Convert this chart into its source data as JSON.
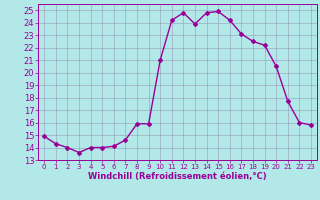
{
  "x": [
    0,
    1,
    2,
    3,
    4,
    5,
    6,
    7,
    8,
    9,
    10,
    11,
    12,
    13,
    14,
    15,
    16,
    17,
    18,
    19,
    20,
    21,
    22,
    23
  ],
  "y": [
    14.9,
    14.3,
    14.0,
    13.6,
    14.0,
    14.0,
    14.1,
    14.6,
    15.9,
    15.9,
    21.0,
    24.2,
    24.8,
    23.9,
    24.8,
    24.9,
    24.2,
    23.1,
    22.5,
    22.2,
    20.5,
    17.7,
    16.0,
    15.8
  ],
  "line_color": "#990099",
  "marker": "D",
  "marker_size": 2,
  "bg_color": "#b3e8e8",
  "grid_color": "#9999bb",
  "xlabel": "Windchill (Refroidissement éolien,°C)",
  "xlim": [
    -0.5,
    23.5
  ],
  "ylim": [
    13,
    25.5
  ],
  "yticks": [
    13,
    14,
    15,
    16,
    17,
    18,
    19,
    20,
    21,
    22,
    23,
    24,
    25
  ],
  "xticks": [
    0,
    1,
    2,
    3,
    4,
    5,
    6,
    7,
    8,
    9,
    10,
    11,
    12,
    13,
    14,
    15,
    16,
    17,
    18,
    19,
    20,
    21,
    22,
    23
  ],
  "axis_color": "#990099",
  "tick_color": "#990099",
  "label_color": "#990099",
  "line_width": 1.0,
  "xlabel_fontsize": 6.0,
  "ytick_fontsize": 6.0,
  "xtick_fontsize": 5.0
}
